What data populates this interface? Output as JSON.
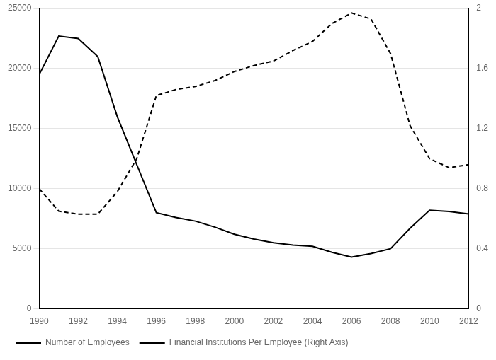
{
  "chart_data": {
    "type": "line",
    "x": [
      1990,
      1991,
      1992,
      1993,
      1994,
      1995,
      1996,
      1997,
      1998,
      1999,
      2000,
      2001,
      2002,
      2003,
      2004,
      2005,
      2006,
      2007,
      2008,
      2009,
      2010,
      2011,
      2012
    ],
    "series": [
      {
        "name": "Number of Employees",
        "color": "#000000",
        "line_style": "solid",
        "values": [
          19500,
          22700,
          22500,
          21000,
          16000,
          12000,
          8000,
          7600,
          7300,
          6800,
          6200,
          5800,
          5500,
          5300,
          5200,
          4700,
          4300,
          4600,
          5000,
          6700,
          8200,
          8100,
          7900
        ]
      },
      {
        "name": "Financial Institutions Per Employee (Right Axis)",
        "color": "#000000",
        "line_style": "dashed",
        "axis": "y2",
        "values": [
          0.8,
          0.65,
          0.63,
          0.63,
          0.78,
          1.0,
          1.42,
          1.46,
          1.48,
          1.52,
          1.58,
          1.62,
          1.65,
          1.72,
          1.78,
          1.9,
          1.97,
          1.93,
          1.7,
          1.22,
          1.0,
          0.94,
          0.96
        ]
      }
    ],
    "xlim": [
      1990,
      2012
    ],
    "xticks": [
      1990,
      1992,
      1994,
      1996,
      1998,
      2000,
      2002,
      2004,
      2006,
      2008,
      2010,
      2012
    ],
    "ylim": [
      0,
      25000
    ],
    "yticks": [
      0,
      5000,
      10000,
      15000,
      20000,
      25000
    ],
    "y2lim": [
      0,
      2.0
    ],
    "y2ticks": [
      0,
      0.4,
      0.8,
      1.2,
      1.6,
      2.0
    ],
    "grid": "y",
    "legend": "bottom"
  }
}
